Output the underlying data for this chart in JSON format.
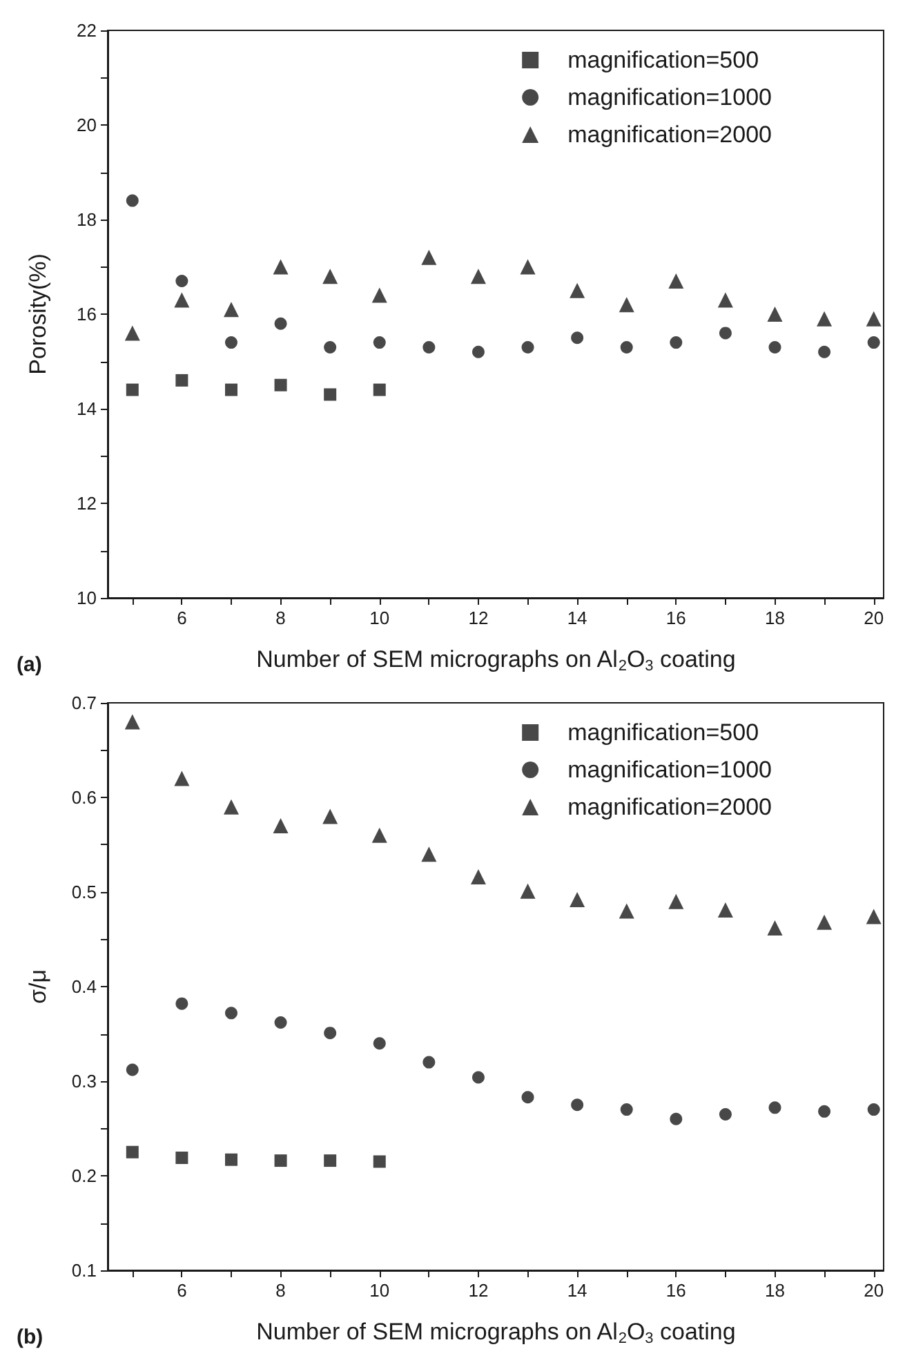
{
  "chart_data": [
    {
      "type": "scatter",
      "ylabel": "Porosity(%)",
      "xlabel": "Number of SEM micrographs on Al$_{2}$O$_{3}$ coating",
      "annotations": [
        "(a)"
      ],
      "x": [
        5,
        6,
        7,
        8,
        9,
        10,
        11,
        12,
        13,
        14,
        15,
        16,
        17,
        18,
        19,
        20
      ],
      "xlim": [
        4.5,
        20.2
      ],
      "xticks": [
        {
          "value": 5,
          "label": null
        },
        6,
        {
          "value": 7,
          "label": null
        },
        8,
        {
          "value": 9,
          "label": null
        },
        10,
        {
          "value": 11,
          "label": null
        },
        12,
        {
          "value": 13,
          "label": null
        },
        14,
        {
          "value": 15,
          "label": null
        },
        16,
        {
          "value": 17,
          "label": null
        },
        18,
        {
          "value": 19,
          "label": null
        },
        20
      ],
      "ylim": [
        10,
        22
      ],
      "yticks": [
        10,
        {
          "value": 11,
          "label": null
        },
        12,
        {
          "value": 13,
          "label": null
        },
        14,
        {
          "value": 15,
          "label": null
        },
        16,
        {
          "value": 17,
          "label": null
        },
        18,
        {
          "value": 19,
          "label": null
        },
        20,
        {
          "value": 21,
          "label": null
        },
        22
      ],
      "grid": false,
      "legend": "top right",
      "series": [
        {
          "name": "magnification=500",
          "color": "#1a1a1a",
          "marker": "square",
          "x": [
            5,
            6,
            7,
            8,
            9,
            10
          ],
          "values": [
            14.4,
            14.6,
            14.4,
            14.5,
            14.3,
            14.4
          ]
        },
        {
          "name": "magnification=1000",
          "color": "#1a1a1a",
          "marker": "circle",
          "values": [
            18.4,
            16.7,
            15.4,
            15.8,
            15.3,
            15.4,
            15.3,
            15.2,
            15.3,
            15.5,
            15.3,
            15.4,
            15.6,
            15.3,
            15.2,
            15.4
          ]
        },
        {
          "name": "magnification=2000",
          "color": "#1a1a1a",
          "marker": "triangle",
          "values": [
            15.6,
            16.3,
            16.1,
            17.0,
            16.8,
            16.4,
            17.2,
            16.8,
            17.0,
            16.5,
            16.2,
            16.7,
            16.3,
            16.0,
            15.9,
            15.9
          ]
        }
      ]
    },
    {
      "type": "scatter",
      "ylabel": "σ/μ",
      "xlabel": "Number of SEM micrographs on Al$_{2}$O$_{3}$ coating",
      "annotations": [
        "(b)"
      ],
      "x": [
        5,
        6,
        7,
        8,
        9,
        10,
        11,
        12,
        13,
        14,
        15,
        16,
        17,
        18,
        19,
        20
      ],
      "xlim": [
        4.5,
        20.2
      ],
      "xticks": [
        {
          "value": 5,
          "label": null
        },
        6,
        {
          "value": 7,
          "label": null
        },
        8,
        {
          "value": 9,
          "label": null
        },
        10,
        {
          "value": 11,
          "label": null
        },
        12,
        {
          "value": 13,
          "label": null
        },
        14,
        {
          "value": 15,
          "label": null
        },
        16,
        {
          "value": 17,
          "label": null
        },
        18,
        {
          "value": 19,
          "label": null
        },
        20
      ],
      "ylim": [
        0.1,
        0.7
      ],
      "yticks": [
        0.1,
        {
          "value": 0.15,
          "label": null
        },
        0.2,
        {
          "value": 0.25,
          "label": null
        },
        0.3,
        {
          "value": 0.35,
          "label": null
        },
        0.4,
        {
          "value": 0.45,
          "label": null
        },
        0.5,
        {
          "value": 0.55,
          "label": null
        },
        0.6,
        {
          "value": 0.65,
          "label": null
        },
        0.7
      ],
      "grid": false,
      "legend": "top right",
      "series": [
        {
          "name": "magnification=500",
          "color": "#1a1a1a",
          "marker": "square",
          "x": [
            5,
            6,
            7,
            8,
            9,
            10
          ],
          "values": [
            0.225,
            0.219,
            0.217,
            0.216,
            0.216,
            0.215
          ]
        },
        {
          "name": "magnification=1000",
          "color": "#1a1a1a",
          "marker": "circle",
          "values": [
            0.312,
            0.382,
            0.372,
            0.362,
            0.351,
            0.34,
            0.32,
            0.304,
            0.283,
            0.275,
            0.27,
            0.26,
            0.265,
            0.272,
            0.268,
            0.27
          ]
        },
        {
          "name": "magnification=2000",
          "color": "#1a1a1a",
          "marker": "triangle",
          "values": [
            0.68,
            0.62,
            0.59,
            0.57,
            0.58,
            0.56,
            0.54,
            0.516,
            0.501,
            0.492,
            0.48,
            0.49,
            0.481,
            0.462,
            0.468,
            0.474
          ]
        }
      ]
    }
  ]
}
